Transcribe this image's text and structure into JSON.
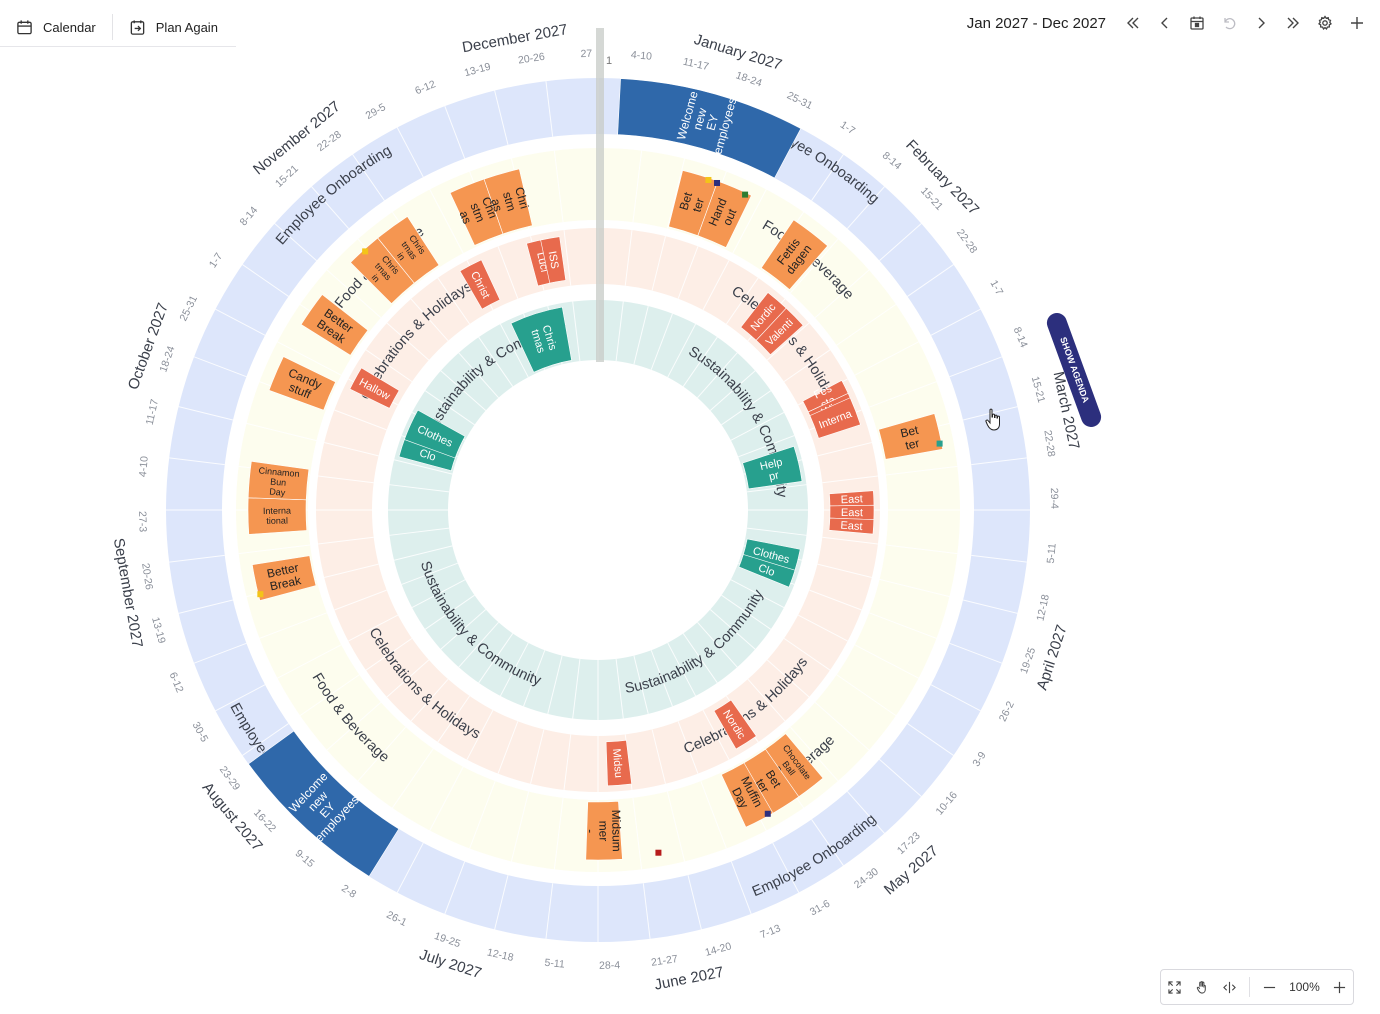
{
  "toolbar": {
    "calendar_label": "Calendar",
    "plan_again_label": "Plan Again",
    "date_range": "Jan 2027 - Dec 2027",
    "zoom_level": "100%"
  },
  "show_agenda_label": "SHOW AGENDA",
  "colors": {
    "onboarding_ring": "#dde6fb",
    "food_ring": "#fdfdee",
    "celebrations_ring": "#fdeee6",
    "sustainability_ring": "#ddefed",
    "onboarding_event": "#2f68aa",
    "food_event": "#f59651",
    "celebration_event": "#e86a4d",
    "sustainability_event": "#27a08e",
    "agenda_tab": "#2c2f7d"
  },
  "rings": [
    {
      "name": "Employee Onboarding"
    },
    {
      "name": "Food & Beverage"
    },
    {
      "name": "Celebrations & Holidays"
    },
    {
      "name": "Sustainability & Community"
    }
  ],
  "months": [
    "January 2027",
    "February 2027",
    "March 2027",
    "April 2027",
    "May 2027",
    "June 2027",
    "July 2027",
    "August 2027",
    "September 2027",
    "October 2027",
    "November 2027",
    "December 2027"
  ],
  "weeks": [
    "4-10",
    "11-17",
    "18-24",
    "25-31",
    "1-7",
    "8-14",
    "15-21",
    "22-28",
    "1-7",
    "8-14",
    "15-21",
    "22-28",
    "29-4",
    "5-11",
    "12-18",
    "19-25",
    "26-2",
    "3-9",
    "10-16",
    "17-23",
    "24-30",
    "31-6",
    "7-13",
    "14-20",
    "21-27",
    "28-4",
    "5-11",
    "12-18",
    "19-25",
    "26-1",
    "2-8",
    "9-15",
    "16-22",
    "23-29",
    "30-5",
    "6-12",
    "13-19",
    "20-26",
    "27-3",
    "4-10",
    "11-17",
    "18-24",
    "25-31",
    "1-7",
    "8-14",
    "15-21",
    "22-28",
    "29-5",
    "6-12",
    "13-19",
    "20-26",
    "27"
  ],
  "events": {
    "onboarding": [
      {
        "label": "Welcome new EY employees"
      },
      {
        "label": "Welcome new EY employees"
      }
    ],
    "food": [
      {
        "label": "Bet ter"
      },
      {
        "label": "Hand out"
      },
      {
        "label": "Fettis dagen"
      },
      {
        "label": "Bet ter"
      },
      {
        "label": "Chocolate Ball Day"
      },
      {
        "label": "Bet ter"
      },
      {
        "label": "Muffin Day"
      },
      {
        "label": "Midsum mer -"
      },
      {
        "label": "Better Break"
      },
      {
        "label": "Interna tional"
      },
      {
        "label": "Cinnamon Bun Day"
      },
      {
        "label": "Candy stuff"
      },
      {
        "label": "Better Break"
      },
      {
        "label": "Chris tmas in"
      },
      {
        "label": "Chris tmas in"
      },
      {
        "label": "Chri stm as"
      },
      {
        "label": "Chri stm as"
      }
    ],
    "celebrations": [
      {
        "label": "Nordic"
      },
      {
        "label": "Valenti"
      },
      {
        "label": "Fes sta"
      },
      {
        "label": "Win"
      },
      {
        "label": "Interna"
      },
      {
        "label": "East"
      },
      {
        "label": "East"
      },
      {
        "label": "East"
      },
      {
        "label": "Nordic"
      },
      {
        "label": "Midsu"
      },
      {
        "label": "Hallow"
      },
      {
        "label": "Christ"
      },
      {
        "label": "Luci"
      },
      {
        "label": "ISS"
      }
    ],
    "sustainability": [
      {
        "label": "Help pr"
      },
      {
        "label": "Clothes"
      },
      {
        "label": "Clo"
      },
      {
        "label": "Clo"
      },
      {
        "label": "Clothes"
      },
      {
        "label": "Chris tmas"
      }
    ]
  }
}
